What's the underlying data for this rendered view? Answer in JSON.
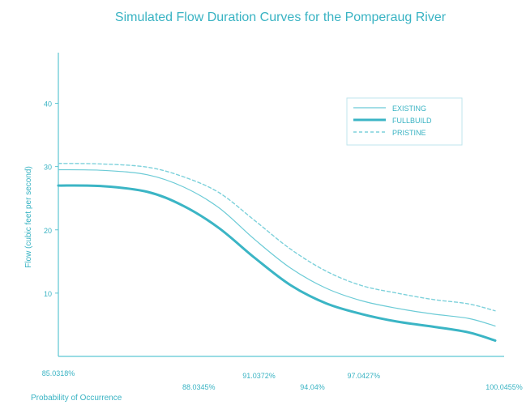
{
  "chart_data": {
    "type": "line",
    "title": "Simulated Flow Duration Curves for the Pomperaug River",
    "ylabel": "Flow (cubic feet per second)",
    "xlabel": "Probability of Occurrence",
    "ylim": [
      0,
      48
    ],
    "y_ticks": [
      10,
      20,
      30,
      40
    ],
    "x_tick_labels": [
      {
        "x": 0.0,
        "label": "85.0318%"
      },
      {
        "x": 0.315,
        "label": "88.0345%"
      },
      {
        "x": 0.45,
        "label": "91.0372%"
      },
      {
        "x": 0.57,
        "label": "94.04%"
      },
      {
        "x": 0.685,
        "label": "97.0427%"
      },
      {
        "x": 1.0,
        "label": "100.0455%"
      }
    ],
    "legend_position": "top-right",
    "colors": {
      "axis": "#5cc6d3",
      "text": "#39b3c3",
      "existing": "#6ccbd6",
      "full_build": "#3bb5c5",
      "pristine": "#7dd1db"
    },
    "series": [
      {
        "name": "EXISTING",
        "style": "thin-solid",
        "x": [
          0.0,
          0.1,
          0.2,
          0.28,
          0.36,
          0.44,
          0.52,
          0.6,
          0.68,
          0.76,
          0.84,
          0.92,
          0.98
        ],
        "y": [
          29.5,
          29.4,
          28.7,
          26.8,
          23.5,
          18.5,
          14.0,
          10.8,
          8.8,
          7.6,
          6.7,
          6.0,
          4.8
        ]
      },
      {
        "name": "FULLBUILD",
        "style": "thick-solid",
        "x": [
          0.0,
          0.1,
          0.2,
          0.28,
          0.36,
          0.44,
          0.52,
          0.6,
          0.68,
          0.76,
          0.84,
          0.92,
          0.98
        ],
        "y": [
          27.0,
          26.9,
          26.0,
          23.8,
          20.3,
          15.6,
          11.3,
          8.4,
          6.7,
          5.5,
          4.7,
          3.8,
          2.5
        ]
      },
      {
        "name": "PRISTINE",
        "style": "dashed",
        "x": [
          0.0,
          0.1,
          0.2,
          0.28,
          0.36,
          0.44,
          0.52,
          0.6,
          0.68,
          0.76,
          0.84,
          0.92,
          0.98
        ],
        "y": [
          30.5,
          30.4,
          29.9,
          28.4,
          25.9,
          21.5,
          17.0,
          13.5,
          11.2,
          10.0,
          9.0,
          8.3,
          7.2
        ]
      }
    ]
  }
}
